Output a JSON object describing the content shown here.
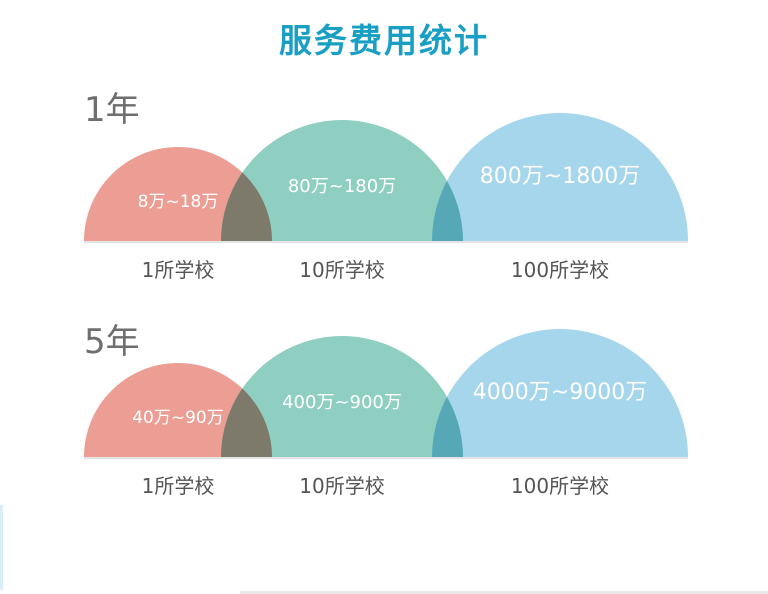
{
  "title": "服务费用统计",
  "colors": {
    "title": "#1a9fc4",
    "period": "#6e6e6e",
    "category": "#555555",
    "value_label": "#ffffff",
    "axis": "#dcdcdc",
    "series": [
      "#ec9e95",
      "#8fcfc2",
      "#a6d6ec"
    ],
    "overlap_1_2": "#7d7a6c",
    "overlap_2_3": "#57a8b7"
  },
  "chart_data": [
    {
      "type": "area",
      "title": "1年",
      "categories": [
        "1所学校",
        "10所学校",
        "100所学校"
      ],
      "values": [
        "8万~18万",
        "80万~180万",
        "800万~1800万"
      ]
    },
    {
      "type": "area",
      "title": "5年",
      "categories": [
        "1所学校",
        "10所学校",
        "100所学校"
      ],
      "values": [
        "40万~90万",
        "400万~900万",
        "4000万~9000万"
      ]
    }
  ]
}
